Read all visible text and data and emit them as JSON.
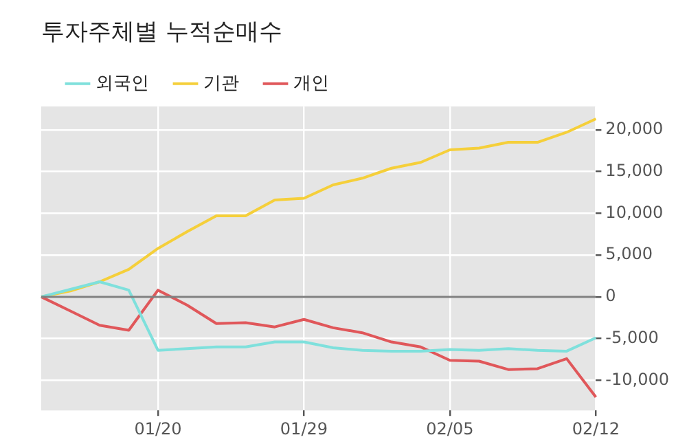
{
  "chart_data": {
    "type": "line",
    "title": "투자주체별 누적순매수",
    "categories": [
      null,
      null,
      null,
      null,
      "01/20",
      null,
      null,
      null,
      null,
      "01/29",
      null,
      null,
      null,
      null,
      "02/05",
      null,
      null,
      null,
      null,
      "02/12"
    ],
    "series": [
      {
        "name": "외국인",
        "color": "#7fe0dc",
        "values": [
          0,
          900,
          1800,
          800,
          -6400,
          -6200,
          -6000,
          -6000,
          -5400,
          -5400,
          -6100,
          -6400,
          -6500,
          -6500,
          -6300,
          -6400,
          -6200,
          -6400,
          -6500,
          -4900
        ]
      },
      {
        "name": "기관",
        "color": "#f5cf3a",
        "values": [
          0,
          700,
          1800,
          3300,
          5800,
          7800,
          9700,
          9700,
          11600,
          11800,
          13400,
          14200,
          15400,
          16100,
          17600,
          17800,
          18500,
          18500,
          19700,
          21300
        ]
      },
      {
        "name": "개인",
        "color": "#e0575a",
        "values": [
          0,
          -1700,
          -3400,
          -4000,
          800,
          -1000,
          -3200,
          -3100,
          -3600,
          -2700,
          -3700,
          -4300,
          -5400,
          -6000,
          -7600,
          -7700,
          -8700,
          -8600,
          -7400,
          -12000
        ]
      }
    ],
    "ylim": [
      -13600,
      22800
    ],
    "yticks": [
      {
        "value": -10000,
        "label": "-10,000"
      },
      {
        "value": -5000,
        "label": "-5,000"
      },
      0,
      {
        "value": 5000,
        "label": "5,000"
      },
      {
        "value": 10000,
        "label": "10,000"
      },
      {
        "value": 15000,
        "label": "15,000"
      },
      {
        "value": 20000,
        "label": "20,000"
      }
    ],
    "ref_lines": [
      {
        "axis": "y",
        "value": 0,
        "color": "#808080"
      }
    ],
    "grid": true,
    "legend": "top left",
    "marker": "none",
    "line_style": "solid"
  }
}
